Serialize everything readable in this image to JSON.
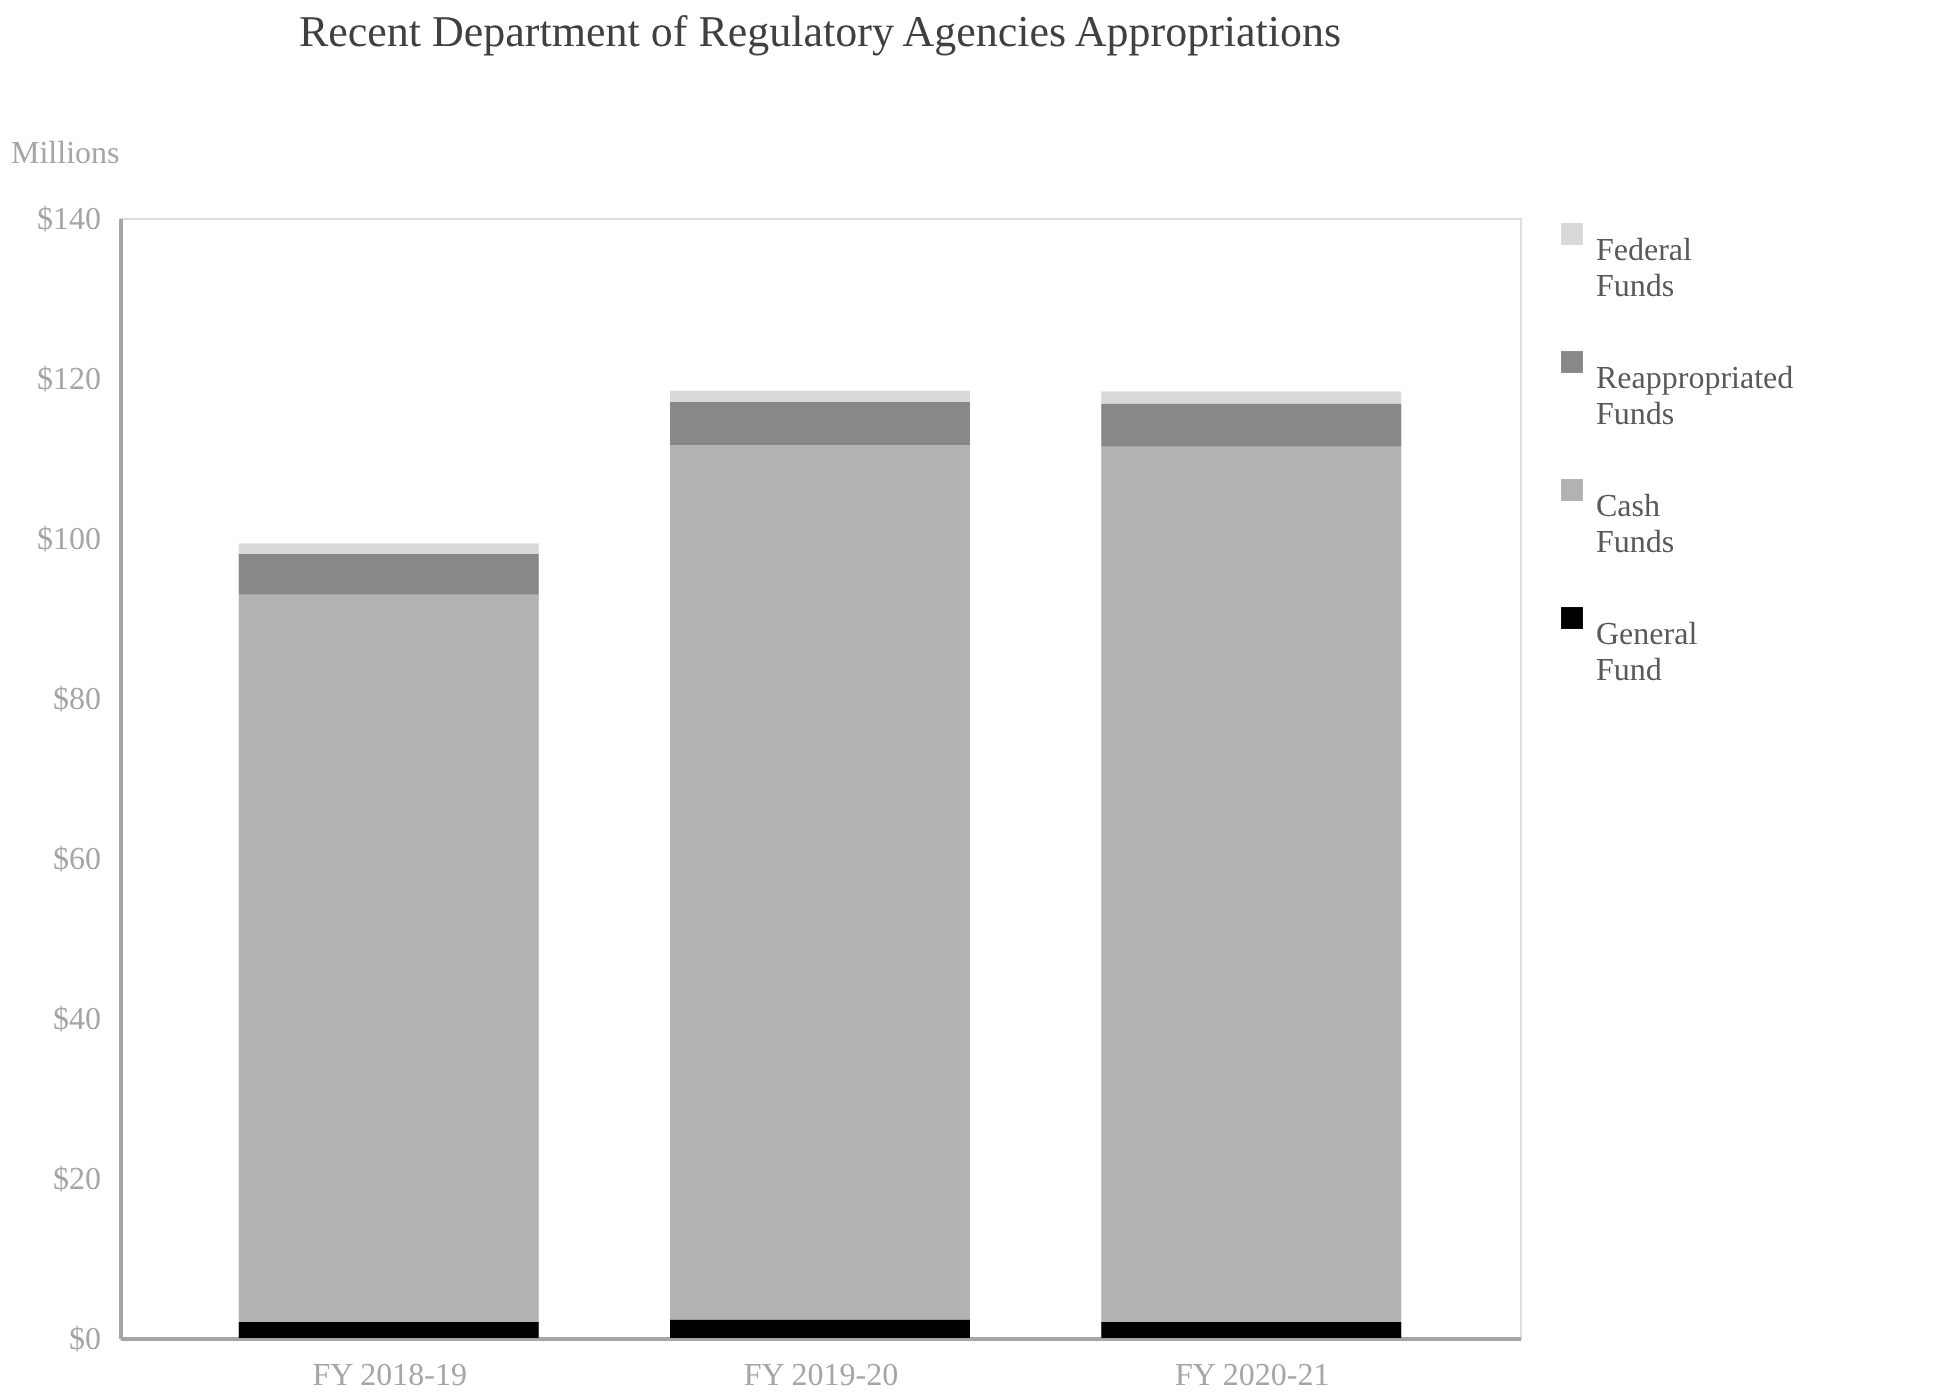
{
  "chart_data": {
    "type": "bar",
    "title": "Recent Department of Regulatory Agencies Appropriations",
    "ylabel": "Millions",
    "categories": [
      "FY 2018-19",
      "FY 2019-20",
      "FY 2020-21"
    ],
    "stacked": true,
    "series": [
      {
        "name": "General Fund",
        "color": "#000000",
        "values": [
          2.0,
          2.3,
          2.0
        ]
      },
      {
        "name": "Cash Funds",
        "color": "#b2b2b2",
        "values": [
          90.9,
          109.3,
          109.4
        ]
      },
      {
        "name": "Reappropriated Funds",
        "color": "#888888",
        "values": [
          5.1,
          5.4,
          5.4
        ]
      },
      {
        "name": "Federal Funds",
        "color": "#d9d9d9",
        "values": [
          1.3,
          1.4,
          1.5
        ]
      }
    ],
    "ylim": [
      0,
      140
    ],
    "yticks": [
      {
        "value": 0,
        "label": "$0"
      },
      {
        "value": 20,
        "label": "$20"
      },
      {
        "value": 40,
        "label": "$40"
      },
      {
        "value": 60,
        "label": "$60"
      },
      {
        "value": 80,
        "label": "$80"
      },
      {
        "value": 100,
        "label": "$100"
      },
      {
        "value": 120,
        "label": "$120"
      },
      {
        "value": 140,
        "label": "$140"
      }
    ],
    "grid": false,
    "legend": "right"
  }
}
